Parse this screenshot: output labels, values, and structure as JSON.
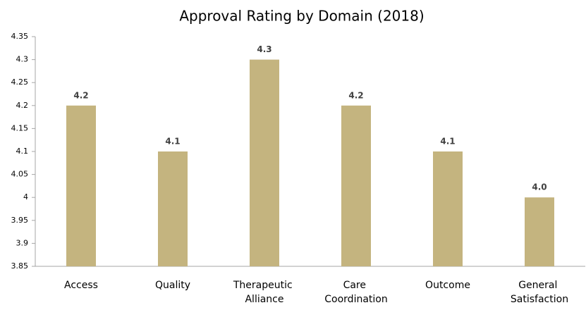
{
  "chart_data": {
    "type": "bar",
    "title": "Approval Rating by Domain (2018)",
    "categories": [
      "Access",
      "Quality",
      "Therapeutic Alliance",
      "Care Coordination",
      "Outcome",
      "General Satisfaction"
    ],
    "values": [
      4.2,
      4.1,
      4.3,
      4.2,
      4.1,
      4.0
    ],
    "value_labels": [
      "4.2",
      "4.1",
      "4.3",
      "4.2",
      "4.1",
      "4.0"
    ],
    "color": "#c4b47f",
    "ylim": [
      3.85,
      4.35
    ],
    "yticks": [
      3.85,
      3.9,
      3.95,
      4,
      4.05,
      4.1,
      4.15,
      4.2,
      4.25,
      4.3,
      4.35
    ],
    "grid": false
  }
}
